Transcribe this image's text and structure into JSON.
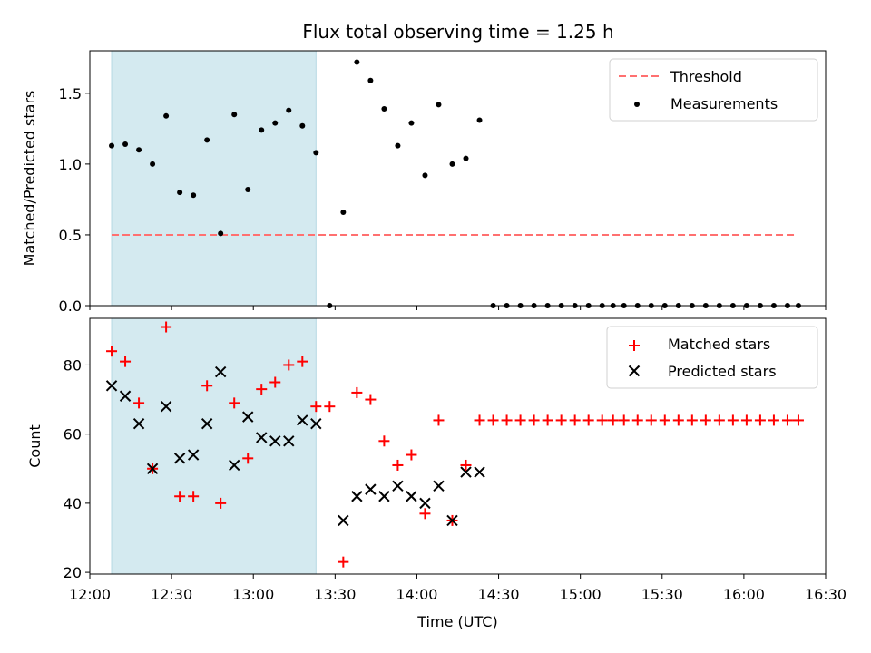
{
  "title": "Flux total observing time = 1.25 h",
  "x_ticks": [
    "12:00",
    "12:30",
    "13:00",
    "13:30",
    "14:00",
    "14:30",
    "15:00",
    "15:30",
    "16:00",
    "16:30"
  ],
  "colors": {
    "observing_span": "#d4eaf0",
    "threshold": "#ff7070",
    "measurements": "#000000",
    "matched": "#ff0000",
    "predicted": "#000000"
  },
  "chart_data": [
    {
      "type": "scatter",
      "ylabel": "Matched/Predicted stars",
      "ylim": [
        0,
        1.8
      ],
      "yticks": [
        "0.0",
        "0.5",
        "1.0",
        "1.5"
      ],
      "xlim": [
        "12:00",
        "16:30"
      ],
      "grid": false,
      "legend_position": "top-right",
      "shaded_span": [
        "12:08",
        "13:23"
      ],
      "threshold": {
        "name": "Threshold",
        "value": 0.5,
        "x_range": [
          "12:08",
          "16:20"
        ]
      },
      "series": [
        {
          "name": "Measurements",
          "points": [
            [
              "12:08",
              1.13
            ],
            [
              "12:13",
              1.14
            ],
            [
              "12:18",
              1.1
            ],
            [
              "12:23",
              1.0
            ],
            [
              "12:28",
              1.34
            ],
            [
              "12:33",
              0.8
            ],
            [
              "12:38",
              0.78
            ],
            [
              "12:43",
              1.17
            ],
            [
              "12:48",
              0.51
            ],
            [
              "12:53",
              1.35
            ],
            [
              "12:58",
              0.82
            ],
            [
              "13:03",
              1.24
            ],
            [
              "13:08",
              1.29
            ],
            [
              "13:13",
              1.38
            ],
            [
              "13:18",
              1.27
            ],
            [
              "13:23",
              1.08
            ],
            [
              "13:28",
              0.0
            ],
            [
              "13:33",
              0.66
            ],
            [
              "13:38",
              1.72
            ],
            [
              "13:43",
              1.59
            ],
            [
              "13:48",
              1.39
            ],
            [
              "13:53",
              1.13
            ],
            [
              "13:58",
              1.29
            ],
            [
              "14:03",
              0.92
            ],
            [
              "14:08",
              1.42
            ],
            [
              "14:13",
              1.0
            ],
            [
              "14:18",
              1.04
            ],
            [
              "14:23",
              1.31
            ],
            [
              "14:28",
              0.0
            ],
            [
              "14:33",
              0.0
            ],
            [
              "14:38",
              0.0
            ],
            [
              "14:43",
              0.0
            ],
            [
              "14:48",
              0.0
            ],
            [
              "14:53",
              0.0
            ],
            [
              "14:58",
              0.0
            ],
            [
              "15:03",
              0.0
            ],
            [
              "15:08",
              0.0
            ],
            [
              "15:12",
              0.0
            ],
            [
              "15:16",
              0.0
            ],
            [
              "15:21",
              0.0
            ],
            [
              "15:26",
              0.0
            ],
            [
              "15:31",
              0.0
            ],
            [
              "15:36",
              0.0
            ],
            [
              "15:41",
              0.0
            ],
            [
              "15:46",
              0.0
            ],
            [
              "15:51",
              0.0
            ],
            [
              "15:56",
              0.0
            ],
            [
              "16:01",
              0.0
            ],
            [
              "16:06",
              0.0
            ],
            [
              "16:11",
              0.0
            ],
            [
              "16:16",
              0.0
            ],
            [
              "16:20",
              0.0
            ]
          ]
        }
      ]
    },
    {
      "type": "scatter",
      "ylabel": "Count",
      "xlabel": "Time (UTC)",
      "ylim": [
        19.5,
        93.5
      ],
      "yticks": [
        "20",
        "40",
        "60",
        "80"
      ],
      "xlim": [
        "12:00",
        "16:30"
      ],
      "grid": false,
      "legend_position": "top-right",
      "shaded_span": [
        "12:08",
        "13:23"
      ],
      "series": [
        {
          "name": "Matched stars",
          "marker": "plus",
          "points": [
            [
              "12:08",
              84
            ],
            [
              "12:13",
              81
            ],
            [
              "12:18",
              69
            ],
            [
              "12:23",
              50
            ],
            [
              "12:28",
              91
            ],
            [
              "12:33",
              42
            ],
            [
              "12:38",
              42
            ],
            [
              "12:43",
              74
            ],
            [
              "12:48",
              40
            ],
            [
              "12:53",
              69
            ],
            [
              "12:58",
              53
            ],
            [
              "13:03",
              73
            ],
            [
              "13:08",
              75
            ],
            [
              "13:13",
              80
            ],
            [
              "13:18",
              81
            ],
            [
              "13:23",
              68
            ],
            [
              "13:28",
              68
            ],
            [
              "13:33",
              23
            ],
            [
              "13:38",
              72
            ],
            [
              "13:43",
              70
            ],
            [
              "13:48",
              58
            ],
            [
              "13:53",
              51
            ],
            [
              "13:58",
              54
            ],
            [
              "14:03",
              37
            ],
            [
              "14:08",
              64
            ],
            [
              "14:13",
              35
            ],
            [
              "14:18",
              51
            ],
            [
              "14:23",
              64
            ],
            [
              "14:28",
              64
            ],
            [
              "14:33",
              64
            ],
            [
              "14:38",
              64
            ],
            [
              "14:43",
              64
            ],
            [
              "14:48",
              64
            ],
            [
              "14:53",
              64
            ],
            [
              "14:58",
              64
            ],
            [
              "15:03",
              64
            ],
            [
              "15:08",
              64
            ],
            [
              "15:12",
              64
            ],
            [
              "15:16",
              64
            ],
            [
              "15:21",
              64
            ],
            [
              "15:26",
              64
            ],
            [
              "15:31",
              64
            ],
            [
              "15:36",
              64
            ],
            [
              "15:41",
              64
            ],
            [
              "15:46",
              64
            ],
            [
              "15:51",
              64
            ],
            [
              "15:56",
              64
            ],
            [
              "16:01",
              64
            ],
            [
              "16:06",
              64
            ],
            [
              "16:11",
              64
            ],
            [
              "16:16",
              64
            ],
            [
              "16:20",
              64
            ]
          ]
        },
        {
          "name": "Predicted stars",
          "marker": "x",
          "points": [
            [
              "12:08",
              74
            ],
            [
              "12:13",
              71
            ],
            [
              "12:18",
              63
            ],
            [
              "12:23",
              50
            ],
            [
              "12:28",
              68
            ],
            [
              "12:33",
              53
            ],
            [
              "12:38",
              54
            ],
            [
              "12:43",
              63
            ],
            [
              "12:48",
              78
            ],
            [
              "12:53",
              51
            ],
            [
              "12:58",
              65
            ],
            [
              "13:03",
              59
            ],
            [
              "13:08",
              58
            ],
            [
              "13:13",
              58
            ],
            [
              "13:18",
              64
            ],
            [
              "13:23",
              63
            ],
            [
              "13:33",
              35
            ],
            [
              "13:38",
              42
            ],
            [
              "13:43",
              44
            ],
            [
              "13:48",
              42
            ],
            [
              "13:53",
              45
            ],
            [
              "13:58",
              42
            ],
            [
              "14:03",
              40
            ],
            [
              "14:08",
              45
            ],
            [
              "14:13",
              35
            ],
            [
              "14:18",
              49
            ],
            [
              "14:23",
              49
            ]
          ]
        }
      ]
    }
  ]
}
